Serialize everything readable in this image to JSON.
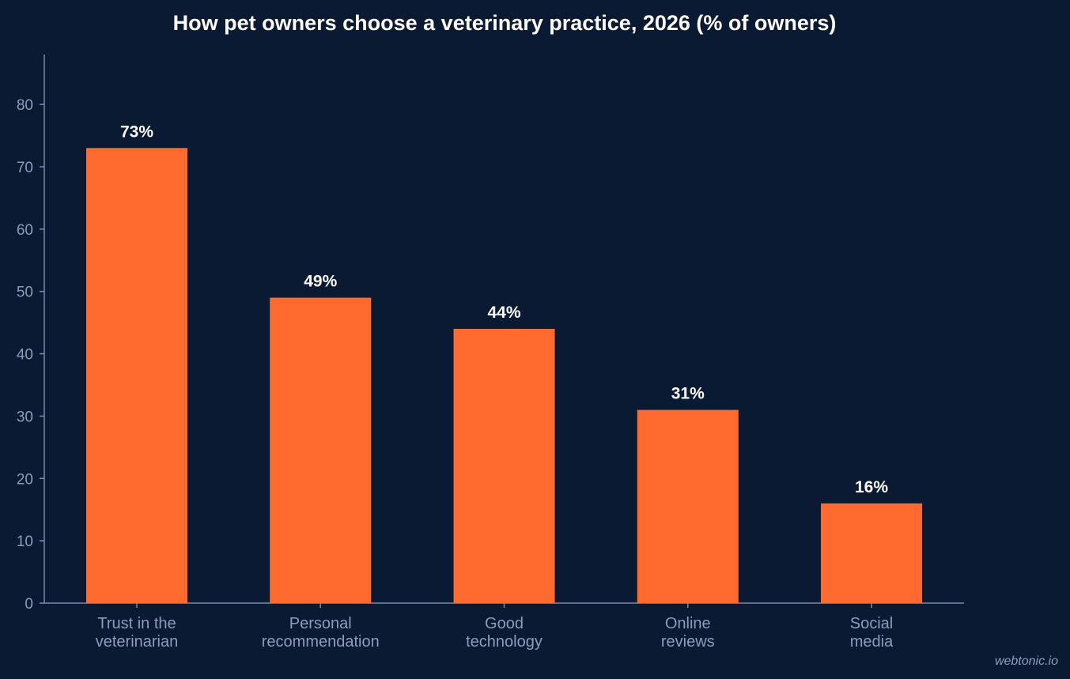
{
  "chart_data": {
    "type": "bar",
    "title": "How pet owners choose a veterinary practice, 2026 (% of owners)",
    "xlabel": "",
    "ylabel": "",
    "categories": [
      [
        "Trust in the",
        "veterinarian"
      ],
      [
        "Personal",
        "recommendation"
      ],
      [
        "Good",
        "technology"
      ],
      [
        "Online",
        "reviews"
      ],
      [
        "Social",
        "media"
      ]
    ],
    "values": [
      73,
      49,
      44,
      31,
      16
    ],
    "value_labels": [
      "73%",
      "49%",
      "44%",
      "31%",
      "16%"
    ],
    "ylim": [
      0,
      88
    ],
    "yticks": [
      0,
      10,
      20,
      30,
      40,
      50,
      60,
      70,
      80
    ],
    "grid": false,
    "legend": "none",
    "bar_color": "#ff6b2f",
    "background_color": "#0b1a33"
  },
  "watermark": "webtonic.io"
}
